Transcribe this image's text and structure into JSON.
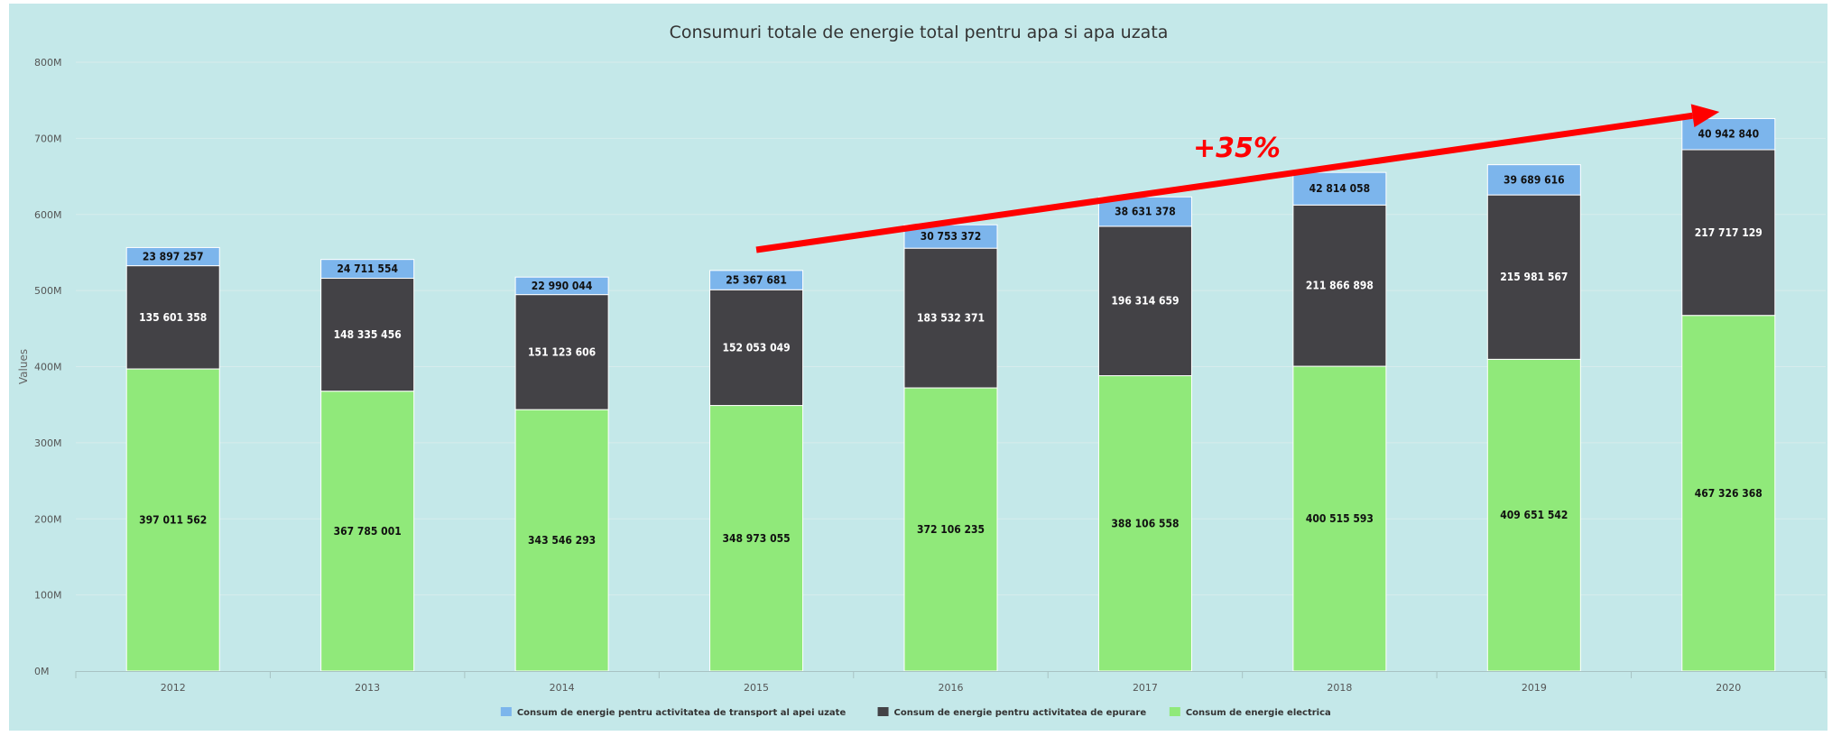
{
  "chart_data": {
    "type": "bar",
    "stacked": true,
    "title": "Consumuri totale de energie total pentru apa si apa uzata",
    "ylabel": "Values",
    "xlabel": "",
    "ylim": [
      0,
      800000000
    ],
    "y_ticks": [
      "0M",
      "100M",
      "200M",
      "300M",
      "400M",
      "500M",
      "600M",
      "700M",
      "800M"
    ],
    "grid": true,
    "legend_position": "bottom",
    "categories": [
      "2012",
      "2013",
      "2014",
      "2015",
      "2016",
      "2017",
      "2018",
      "2019",
      "2020"
    ],
    "series": [
      {
        "name": "Consum de energie electrica",
        "color": "#90e97a",
        "values": [
          397011562,
          367785001,
          343546293,
          348973055,
          372106235,
          388106558,
          400515593,
          409651542,
          467326368
        ],
        "labels": [
          "397 011 562",
          "367 785 001",
          "343 546 293",
          "348 973 055",
          "372 106 235",
          "388 106 558",
          "400 515 593",
          "409 651 542",
          "467 326 368"
        ],
        "label_color": "#111111"
      },
      {
        "name": "Consum de energie pentru activitatea de epurare",
        "color": "#434246",
        "values": [
          135601358,
          148335456,
          151123606,
          152053049,
          183532371,
          196314659,
          211866898,
          215981567,
          217717129
        ],
        "labels": [
          "135 601 358",
          "148 335 456",
          "151 123 606",
          "152 053 049",
          "183 532 371",
          "196 314 659",
          "211 866 898",
          "215 981 567",
          "217 717 129"
        ],
        "label_color": "#ffffff"
      },
      {
        "name": "Consum de energie pentru activitatea de transport al apei uzate",
        "color": "#7cb5ec",
        "values": [
          23897257,
          24711554,
          22990044,
          25367681,
          30753372,
          38631378,
          42814058,
          39689616,
          40942840
        ],
        "labels": [
          "23 897 257",
          "24 711 554",
          "22 990 044",
          "25 367 681",
          "30 753 372",
          "38 631 378",
          "42 814 058",
          "39 689 616",
          "40 942 840"
        ],
        "label_color": "#111111"
      }
    ],
    "legend_order": [
      2,
      1,
      0
    ],
    "annotation": {
      "text": "+35%",
      "color": "#ff0000",
      "arrow_from_category": "2015",
      "arrow_to_category": "2020"
    }
  }
}
